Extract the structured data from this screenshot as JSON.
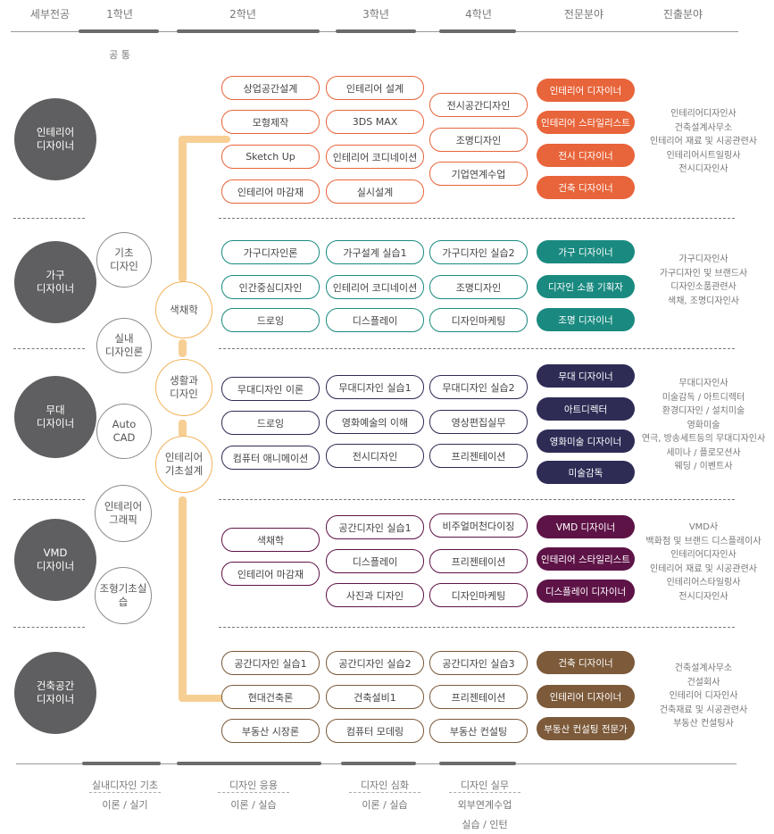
{
  "headers": [
    "세부전공",
    "1학년",
    "2학년",
    "3학년",
    "4학년",
    "전문분야",
    "진출분야"
  ],
  "common_label": "공 통",
  "majors": [
    "인테리어\n디자이너",
    "가구\n디자이너",
    "무대\n디자이너",
    "VMD\n디자이너",
    "건축공간\n디자이너"
  ],
  "first_year": [
    "기초\n디자인",
    "실내\n디자인론",
    "Auto\nCAD",
    "인테리어\n그래픽",
    "조형기초실습"
  ],
  "common_core": [
    "색채학",
    "생활과\n디자인",
    "인테리어\n기초설계"
  ],
  "colors": {
    "interior": "#e8643a",
    "furniture": "#1a8a80",
    "stage": "#2e2c55",
    "vmd": "#5e1347",
    "arch": "#7c5a3a",
    "spine": "#f7cf94"
  },
  "groups": [
    {
      "color_key": "interior",
      "y2": [
        "상업공간설계",
        "모형제작",
        "Sketch Up",
        "인테리어 마감재"
      ],
      "y3": [
        "인테리어 설계",
        "3DS MAX",
        "인테리어 코디네이션",
        "실시설계"
      ],
      "y4": [
        "전시공간디자인",
        "조명디자인",
        "기업연계수업"
      ],
      "fields": [
        "인테리어 디자이너",
        "인테리어 스타일리스트",
        "전시 디자이너",
        "건축 디자이너"
      ],
      "careers": [
        "인테리어디자인사",
        "건축설계사무소",
        "인테리어 재료 및 시공관련사",
        "인테리어시트일링사",
        "전시디자인사"
      ]
    },
    {
      "color_key": "furniture",
      "y2": [
        "가구디자인론",
        "인간중심디자인",
        "드로잉"
      ],
      "y3": [
        "가구설계 실습1",
        "인테리어 코디네이션",
        "디스플레이"
      ],
      "y4": [
        "가구디자인 실습2",
        "조명디자인",
        "디자인마케팅"
      ],
      "fields": [
        "가구 디자이너",
        "디자인 소품 기획자",
        "조명 디자이너"
      ],
      "careers": [
        "가구디자인사",
        "가구디자인 및 브랜드사",
        "디자인소품관련사",
        "색채, 조명디자인사"
      ]
    },
    {
      "color_key": "stage",
      "y2": [
        "무대디자인 이론",
        "드로잉",
        "컴퓨터 애니메이션"
      ],
      "y3": [
        "무대디자인 실습1",
        "영화예술의 이해",
        "전시디자인"
      ],
      "y4": [
        "무대디자인 실습2",
        "영상편집실무",
        "프리젠테이션"
      ],
      "fields": [
        "무대 디자이너",
        "아트디렉터",
        "영화미술 디자이너",
        "미술감독"
      ],
      "careers": [
        "무대디자인사",
        "미술감독 / 아트디렉터",
        "환경디자인 / 설치미술",
        "영화미술",
        "연극, 방송세트등의 무대디자인사",
        "세미나 / 플로모션사",
        "웨딩 / 이벤트사"
      ]
    },
    {
      "color_key": "vmd",
      "y2": [
        "색채학",
        "인테리어 마감재"
      ],
      "y3": [
        "공간디자인 실습1",
        "디스플레이",
        "사진과 디자인"
      ],
      "y4": [
        "비주얼머천다이징",
        "프리젠테이션",
        "디자인마케팅"
      ],
      "fields": [
        "VMD 디자이너",
        "인테리어 스타일리스트",
        "디스플레이 디자이너"
      ],
      "careers": [
        "VMD사",
        "백화점 및 브랜드 디스플레이사",
        "인테리어디자인사",
        "인테리어 재료 및 시공관련사",
        "인테리어스타일링사",
        "전시디자인사"
      ]
    },
    {
      "color_key": "arch",
      "y2": [
        "공간디자인 실습1",
        "현대건축론",
        "부동산 시장론"
      ],
      "y3": [
        "공간디자인 실습2",
        "건축설비1",
        "컴퓨터 모데링"
      ],
      "y4": [
        "공간디자인 실습3",
        "프리젠테이션",
        "부동산 컨설팅"
      ],
      "fields": [
        "건축 디자이너",
        "인테리어 디자이너",
        "부동산 컨설팅 전문가"
      ],
      "careers": [
        "건축설계사무소",
        "건설회사",
        "인테리어 디자인사",
        "건축재료 및 시공관련사",
        "부동산 컨설팅사"
      ]
    }
  ],
  "bottom": [
    {
      "title": "실내디자인 기초",
      "sub": "이론 / 실기"
    },
    {
      "title": "디자인 응용",
      "sub": "이론 / 실습"
    },
    {
      "title": "디자인 심화",
      "sub": "이론 / 실습"
    },
    {
      "title": "디자인 실무",
      "sub": "외부연계수업",
      "sub2": "실습 / 인턴"
    }
  ]
}
